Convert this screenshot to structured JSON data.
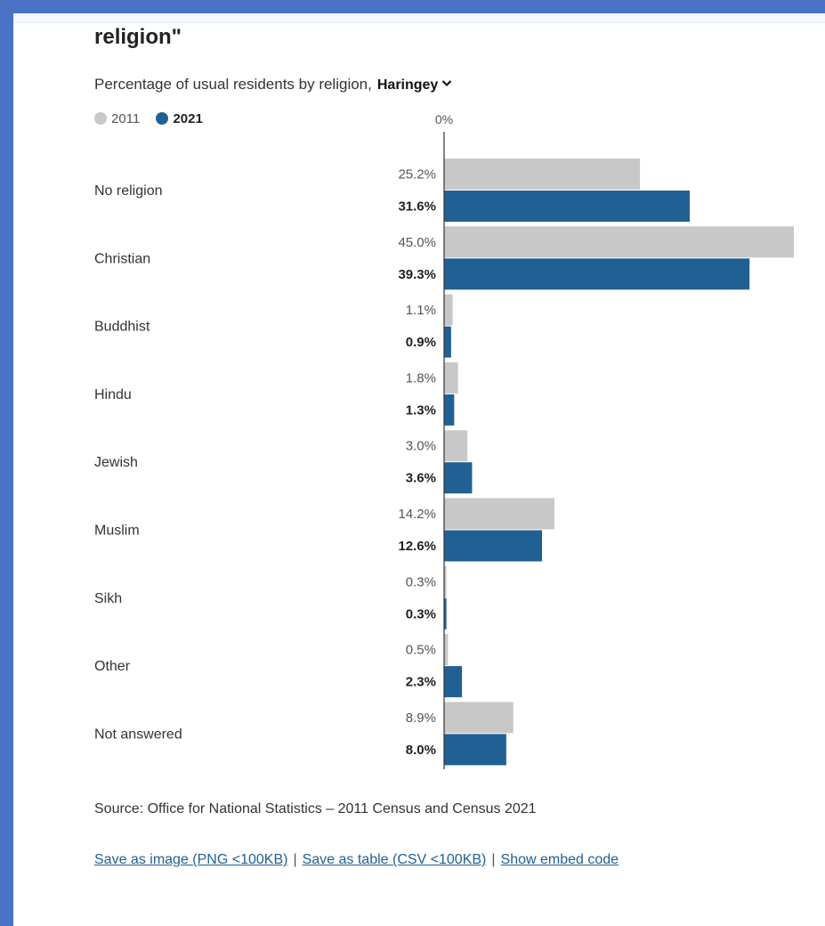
{
  "page": {
    "title": "religion\"",
    "subtitle": "Percentage of usual residents by religion,",
    "area_selector": "Haringey"
  },
  "legend": [
    {
      "label": "2011",
      "color": "#c8c8c8"
    },
    {
      "label": "2021",
      "color": "#206095"
    }
  ],
  "chart_data": {
    "type": "bar",
    "orientation": "horizontal",
    "axis_start_label": "0%",
    "xlim": [
      0,
      45
    ],
    "categories": [
      "No religion",
      "Christian",
      "Buddhist",
      "Hindu",
      "Jewish",
      "Muslim",
      "Sikh",
      "Other",
      "Not answered"
    ],
    "series": [
      {
        "name": "2011",
        "color": "#c8c8c8",
        "values": [
          25.2,
          45.0,
          1.1,
          1.8,
          3.0,
          14.2,
          0.3,
          0.5,
          8.9
        ],
        "labels": [
          "25.2%",
          "45.0%",
          "1.1%",
          "1.8%",
          "3.0%",
          "14.2%",
          "0.3%",
          "0.5%",
          "8.9%"
        ]
      },
      {
        "name": "2021",
        "color": "#206095",
        "values": [
          31.6,
          39.3,
          0.9,
          1.3,
          3.6,
          12.6,
          0.3,
          2.3,
          8.0
        ],
        "labels": [
          "31.6%",
          "39.3%",
          "0.9%",
          "1.3%",
          "3.6%",
          "12.6%",
          "0.3%",
          "2.3%",
          "8.0%"
        ]
      }
    ]
  },
  "source": "Source: Office for National Statistics – 2011 Census and Census 2021",
  "links": {
    "save_image": "Save as image (PNG <100KB)",
    "separator": "|",
    "save_table": "Save as table (CSV <100KB)",
    "embed": "Show embed code"
  }
}
